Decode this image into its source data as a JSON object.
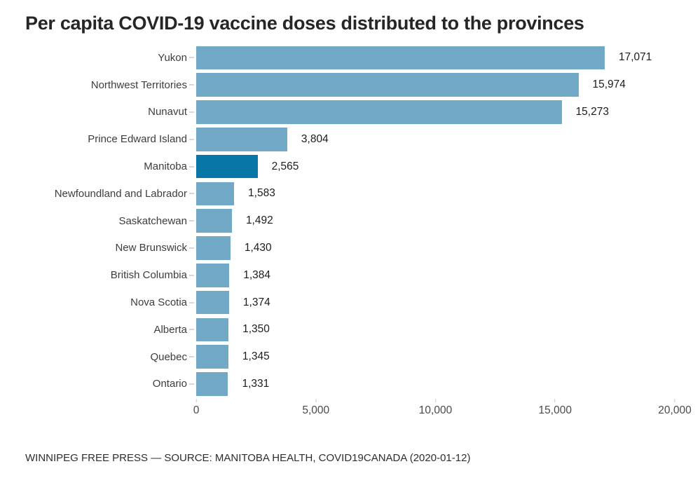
{
  "title": "Per capita COVID-19 vaccine doses distributed to the provinces",
  "footer": "WINNIPEG FREE PRESS — SOURCE: MANITOBA HEALTH, COVID19CANADA (2020-01-12)",
  "chart_data": {
    "type": "bar",
    "orientation": "horizontal",
    "title": "Per capita COVID-19 vaccine doses distributed to the provinces",
    "xlabel": "",
    "ylabel": "",
    "xlim": [
      0,
      20000
    ],
    "grid": false,
    "legend": false,
    "bar_color": "#71a8c6",
    "highlight_color": "#0877a8",
    "highlight_category": "Manitoba",
    "categories": [
      "Yukon",
      "Northwest Territories",
      "Nunavut",
      "Prince Edward Island",
      "Manitoba",
      "Newfoundland and Labrador",
      "Saskatchewan",
      "New Brunswick",
      "British Columbia",
      "Nova Scotia",
      "Alberta",
      "Quebec",
      "Ontario"
    ],
    "values": [
      17071,
      15974,
      15273,
      3804,
      2565,
      1583,
      1492,
      1430,
      1384,
      1374,
      1350,
      1345,
      1331
    ],
    "value_labels": [
      "17,071",
      "15,974",
      "15,273",
      "3,804",
      "2,565",
      "1,583",
      "1,492",
      "1,430",
      "1,384",
      "1,374",
      "1,350",
      "1,345",
      "1,331"
    ],
    "x_ticks": [
      {
        "value": 0,
        "label": "0"
      },
      {
        "value": 5000,
        "label": "5,000"
      },
      {
        "value": 10000,
        "label": "10,000"
      },
      {
        "value": 15000,
        "label": "15,000"
      },
      {
        "value": 20000,
        "label": "20,000"
      }
    ]
  }
}
